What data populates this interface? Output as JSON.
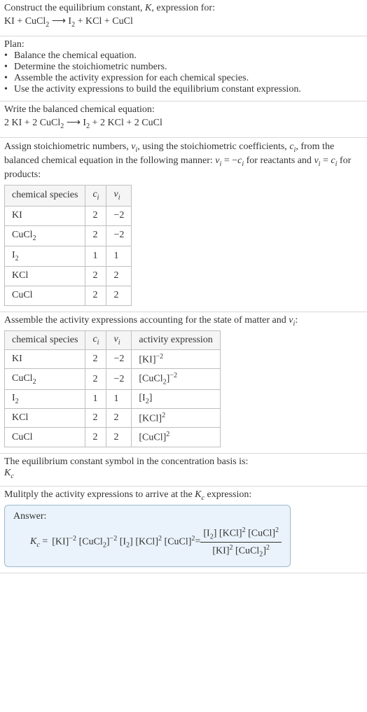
{
  "s1": {
    "title": "Construct the equilibrium constant, K, expression for:",
    "eq_r1": "KI",
    "plus1": " + ",
    "eq_r2_a": "CuCl",
    "eq_r2_sub": "2",
    "arrow": " ⟶ ",
    "eq_p1_a": "I",
    "eq_p1_sub": "2",
    "eq_p2": "KCl",
    "eq_p3": "CuCl"
  },
  "s2": {
    "heading": "Plan:",
    "b1": "Balance the chemical equation.",
    "b2": "Determine the stoichiometric numbers.",
    "b3": "Assemble the activity expression for each chemical species.",
    "b4": "Use the activity expressions to build the equilibrium constant expression.",
    "bullet": "•"
  },
  "s3": {
    "intro": "Write the balanced chemical equation:",
    "c1": "2 KI",
    "c2a": "2 CuCl",
    "c2sub": "2",
    "arrow": " ⟶ ",
    "p1a": "I",
    "p1sub": "2",
    "p2": "2 KCl",
    "p3": "2 CuCl",
    "plus": " + "
  },
  "s4": {
    "intro_a": "Assign stoichiometric numbers, ",
    "nu_i": "ν",
    "nu_i_sub": "i",
    "intro_b": ", using the stoichiometric coefficients, ",
    "c_i": "c",
    "c_i_sub": "i",
    "intro_c": ", from the balanced chemical equation in the following manner: ",
    "rel1a": "ν",
    "rel1b": " = −",
    "rel1c": "c",
    "intro_d": " for reactants and ",
    "rel2a": "ν",
    "rel2b": " = ",
    "rel2c": "c",
    "intro_e": " for products:",
    "h1": "chemical species",
    "h2a": "c",
    "h2sub": "i",
    "h3a": "ν",
    "h3sub": "i",
    "r1c1": "KI",
    "r1c2": "2",
    "r1c3": "−2",
    "r2c1a": "CuCl",
    "r2c1sub": "2",
    "r2c2": "2",
    "r2c3": "−2",
    "r3c1a": "I",
    "r3c1sub": "2",
    "r3c2": "1",
    "r3c3": "1",
    "r4c1": "KCl",
    "r4c2": "2",
    "r4c3": "2",
    "r5c1": "CuCl",
    "r5c2": "2",
    "r5c3": "2"
  },
  "s5": {
    "intro_a": "Assemble the activity expressions accounting for the state of matter and ",
    "nu": "ν",
    "nu_sub": "i",
    "intro_b": ":",
    "h1": "chemical species",
    "h2a": "c",
    "h2sub": "i",
    "h3a": "ν",
    "h3sub": "i",
    "h4": "activity expression",
    "r1c1": "KI",
    "r1c2": "2",
    "r1c3": "−2",
    "r1c4": "[KI]",
    "r1c4sup": "−2",
    "r2c1a": "CuCl",
    "r2c1sub": "2",
    "r2c2": "2",
    "r2c3": "−2",
    "r2c4a": "[CuCl",
    "r2c4sub": "2",
    "r2c4b": "]",
    "r2c4sup": "−2",
    "r3c1a": "I",
    "r3c1sub": "2",
    "r3c2": "1",
    "r3c3": "1",
    "r3c4a": "[I",
    "r3c4sub": "2",
    "r3c4b": "]",
    "r4c1": "KCl",
    "r4c2": "2",
    "r4c3": "2",
    "r4c4": "[KCl]",
    "r4c4sup": "2",
    "r5c1": "CuCl",
    "r5c2": "2",
    "r5c3": "2",
    "r5c4": "[CuCl]",
    "r5c4sup": "2"
  },
  "s6": {
    "line1": "The equilibrium constant symbol in the concentration basis is:",
    "K": "K",
    "Ksub": "c"
  },
  "s7": {
    "intro_a": "Mulitply the activity expressions to arrive at the ",
    "K": "K",
    "Ksub": "c",
    "intro_b": " expression:",
    "answer_label": "Answer:",
    "Kc": "K",
    "Kcsub": "c",
    "eq": " = ",
    "t1": "[KI]",
    "t1sup": "−2",
    "t2a": "[CuCl",
    "t2sub": "2",
    "t2b": "]",
    "t2sup": "−2",
    "t3a": "[I",
    "t3sub": "2",
    "t3b": "]",
    "t4": "[KCl]",
    "t4sup": "2",
    "t5": "[CuCl]",
    "t5sup": "2",
    "eq2": " = ",
    "num_t1a": "[I",
    "num_t1sub": "2",
    "num_t1b": "]",
    "num_t2": "[KCl]",
    "num_t2sup": "2",
    "num_t3": "[CuCl]",
    "num_t3sup": "2",
    "den_t1": "[KI]",
    "den_t1sup": "2",
    "den_t2a": "[CuCl",
    "den_t2sub": "2",
    "den_t2b": "]",
    "den_t2sup": "2"
  }
}
